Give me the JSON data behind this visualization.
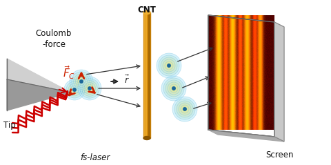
{
  "bg_color": "#ffffff",
  "labels": {
    "coulomb": "Coulomb\n-force",
    "tip": "Tip",
    "fslaser": "fs-laser",
    "cnt": "CNT",
    "screen": "Screen"
  },
  "laser_color": "#cc0000",
  "cnt_color": "#d4880a",
  "cnt_highlight": "#f0b030",
  "cnt_shadow": "#8a5500",
  "electron_dot": "#1a6699",
  "wave_inner": "#ffe866",
  "wave_outer": "#b8e8f8",
  "arrow_red": "#cc2200",
  "arrow_dark": "#222222",
  "text_color": "#111111",
  "screen_bg": "#3a0000",
  "fringe_yellow": "#ffcc00",
  "fringe_orange": "#dd4400",
  "screen_side": "#cccccc",
  "screen_edge": "#888888",
  "tip_light": "#d0d0d0",
  "tip_mid": "#999999",
  "tip_dark": "#666666"
}
